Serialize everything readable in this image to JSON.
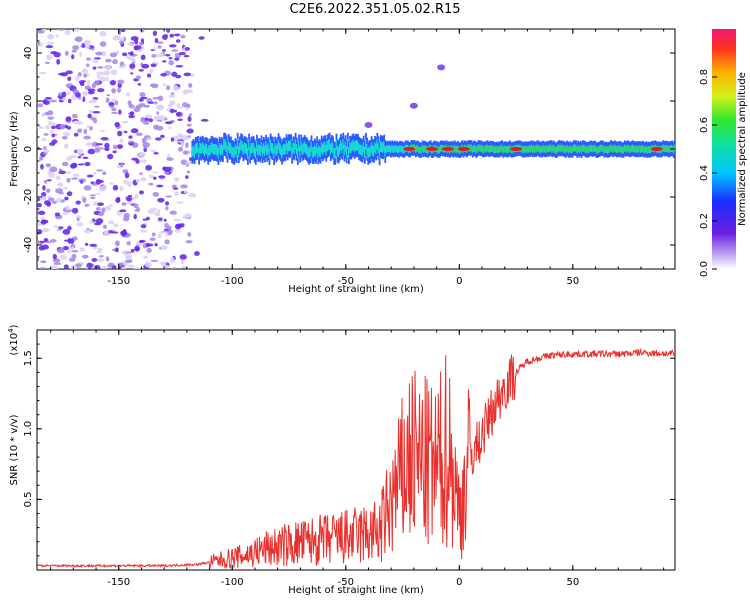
{
  "page": {
    "title": "C2E6.2022.351.05.02.R15"
  },
  "colors": {
    "snr_line": "#e8302c",
    "spec_outer": "#6a2ce8",
    "spec_mid": "#2c5bff",
    "spec_core": "#18e0d0",
    "spec_hot": "#e81818"
  },
  "chart_data": [
    {
      "type": "heatmap",
      "title": "C2E6.2022.351.05.02.R15",
      "xlabel": "Height of straight line (km)",
      "ylabel": "Frequency (Hz)",
      "xlim": [
        -186,
        95
      ],
      "ylim": [
        -50,
        50
      ],
      "x_ticks": [
        -150,
        -100,
        -50,
        0,
        50
      ],
      "y_ticks": [
        -40,
        -20,
        0,
        20,
        40
      ],
      "colorbar": {
        "label": "Normalized spectral amplitude",
        "range": [
          0.0,
          1.0
        ],
        "ticks": [
          "0.0",
          "0.2",
          "0.4",
          "0.6",
          "0.8"
        ]
      },
      "features": [
        {
          "name": "noise_region",
          "x_range": [
            -186,
            -118
          ],
          "freq_range": [
            -50,
            50
          ],
          "amplitude": 0.05
        },
        {
          "name": "signal_band",
          "x_range": [
            -118,
            95
          ],
          "center_freq": 0,
          "halfwidth_hz": 4,
          "amplitude_max": 1.0
        },
        {
          "name": "rising_tail",
          "x": [
            -40,
            -20,
            -8
          ],
          "freq": [
            10,
            18,
            34
          ]
        }
      ],
      "grid": false
    },
    {
      "type": "line",
      "xlabel": "Height of straight line (km)",
      "ylabel": "SNR (10 * v/v)",
      "yscale_note": "(x10",
      "yscale_exp": "4",
      "xlim": [
        -186,
        95
      ],
      "ylim": [
        0,
        17000
      ],
      "x_ticks": [
        -150,
        -100,
        -50,
        0,
        50
      ],
      "y_ticks": [
        {
          "value": 5000,
          "label": "0.5"
        },
        {
          "value": 10000,
          "label": "1.0"
        },
        {
          "value": 15000,
          "label": "1.5"
        }
      ],
      "series": [
        {
          "x": [
            -186,
            -160,
            -130,
            -115,
            -105,
            -95,
            -85,
            -75,
            -65,
            -55,
            -45,
            -35,
            -28,
            -22,
            -15,
            -10,
            -5,
            0,
            5,
            10,
            15,
            20,
            25,
            30,
            40,
            50,
            60,
            70,
            80,
            95
          ],
          "y": [
            300,
            300,
            300,
            400,
            700,
            1000,
            1500,
            1800,
            2000,
            2200,
            2400,
            2700,
            5500,
            8000,
            7500,
            7000,
            9000,
            4000,
            8000,
            9500,
            11500,
            13000,
            14000,
            14800,
            15200,
            15300,
            15300,
            15300,
            15400,
            15300
          ]
        }
      ],
      "grid": false
    }
  ]
}
